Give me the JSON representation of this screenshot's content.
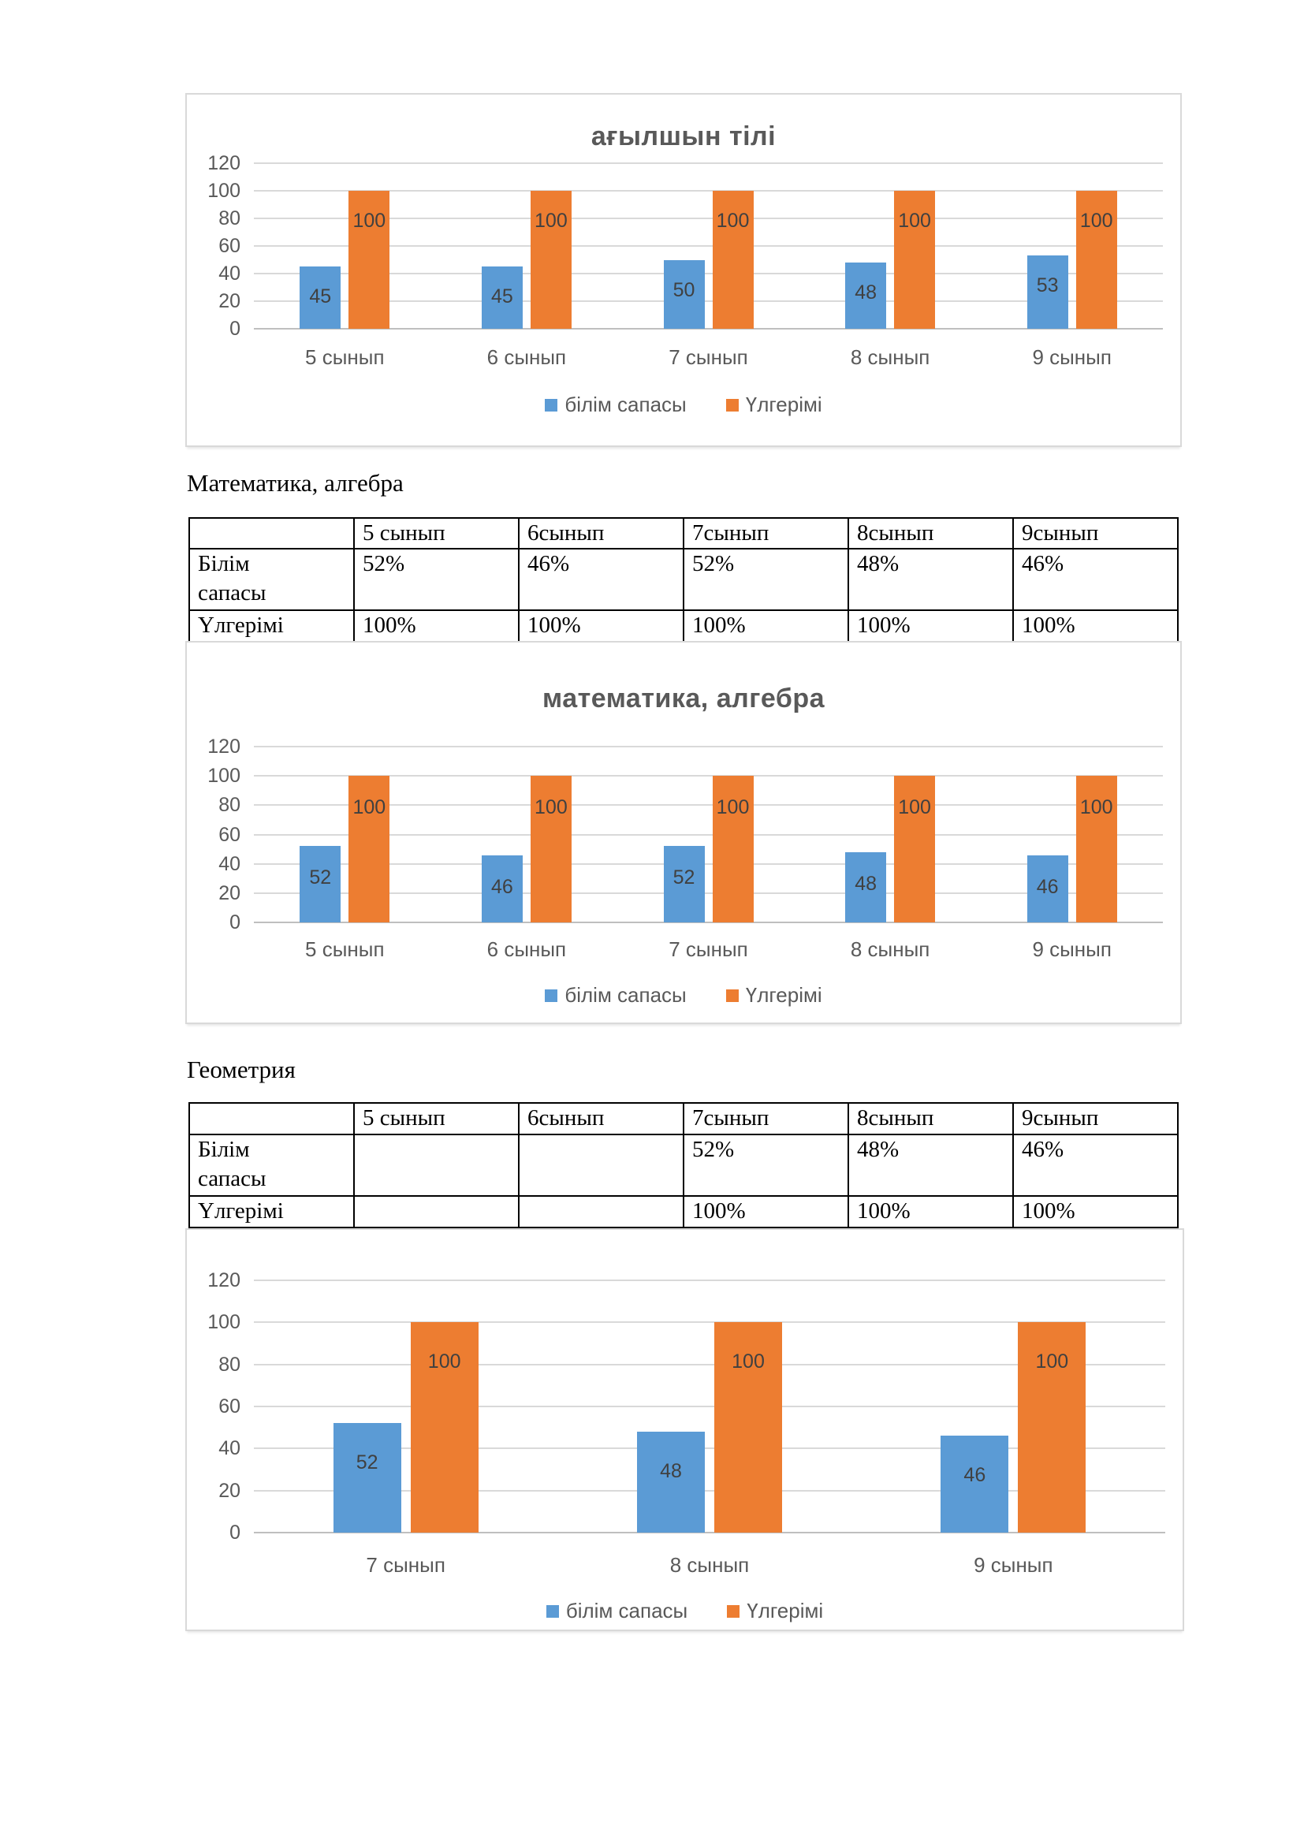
{
  "headings": {
    "math_algebra": "Математика, алгебра",
    "geometry": "Геометрия"
  },
  "colors": {
    "series_quality": "#5B9BD5",
    "series_progress": "#ED7D31",
    "gridline": "#D9D9D9",
    "axis_text": "#595959",
    "bar_label_text": "#404040",
    "chart_border": "#D9D9D9",
    "table_border": "#000000"
  },
  "tables": [
    {
      "columns": [
        "",
        "5 сынып",
        "6сынып",
        "7сынып",
        "8сынып",
        "9сынып"
      ],
      "rows": [
        {
          "label": "Білім сапасы",
          "values": [
            "52%",
            "46%",
            "52%",
            "48%",
            "46%"
          ]
        },
        {
          "label": "Үлгерімі",
          "values": [
            "100%",
            "100%",
            "100%",
            "100%",
            "100%"
          ]
        }
      ]
    },
    {
      "columns": [
        "",
        "5 сынып",
        "6сынып",
        "7сынып",
        "8сынып",
        "9сынып"
      ],
      "rows": [
        {
          "label": "Білім сапасы",
          "values": [
            "",
            "",
            "52%",
            "48%",
            "46%"
          ]
        },
        {
          "label": "Үлгерімі",
          "values": [
            "",
            "",
            "100%",
            "100%",
            "100%"
          ]
        }
      ]
    }
  ],
  "chart_data": [
    {
      "type": "bar",
      "title": "ағылшын тілі",
      "categories": [
        "5 сынып",
        "6 сынып",
        "7 сынып",
        "8 сынып",
        "9 сынып"
      ],
      "series": [
        {
          "name": "білім сапасы",
          "color": "#5B9BD5",
          "values": [
            45,
            45,
            50,
            48,
            53
          ]
        },
        {
          "name": "Үлгерімі",
          "color": "#ED7D31",
          "values": [
            100,
            100,
            100,
            100,
            100
          ]
        }
      ],
      "ylim": [
        0,
        120
      ],
      "yticks": [
        0,
        20,
        40,
        60,
        80,
        100,
        120
      ],
      "grid": true,
      "legend_position": "bottom"
    },
    {
      "type": "bar",
      "title": "математика, алгебра",
      "categories": [
        "5 сынып",
        "6 сынып",
        "7 сынып",
        "8 сынып",
        "9 сынып"
      ],
      "series": [
        {
          "name": "білім сапасы",
          "color": "#5B9BD5",
          "values": [
            52,
            46,
            52,
            48,
            46
          ]
        },
        {
          "name": "Үлгерімі",
          "color": "#ED7D31",
          "values": [
            100,
            100,
            100,
            100,
            100
          ]
        }
      ],
      "ylim": [
        0,
        120
      ],
      "yticks": [
        0,
        20,
        40,
        60,
        80,
        100,
        120
      ],
      "grid": true,
      "legend_position": "bottom"
    },
    {
      "type": "bar",
      "title": "",
      "categories": [
        "7 сынып",
        "8 сынып",
        "9 сынып"
      ],
      "series": [
        {
          "name": "білім сапасы",
          "color": "#5B9BD5",
          "values": [
            52,
            48,
            46
          ]
        },
        {
          "name": "Үлгерімі",
          "color": "#ED7D31",
          "values": [
            100,
            100,
            100
          ]
        }
      ],
      "ylim": [
        0,
        120
      ],
      "yticks": [
        0,
        20,
        40,
        60,
        80,
        100,
        120
      ],
      "grid": true,
      "legend_position": "bottom"
    }
  ]
}
